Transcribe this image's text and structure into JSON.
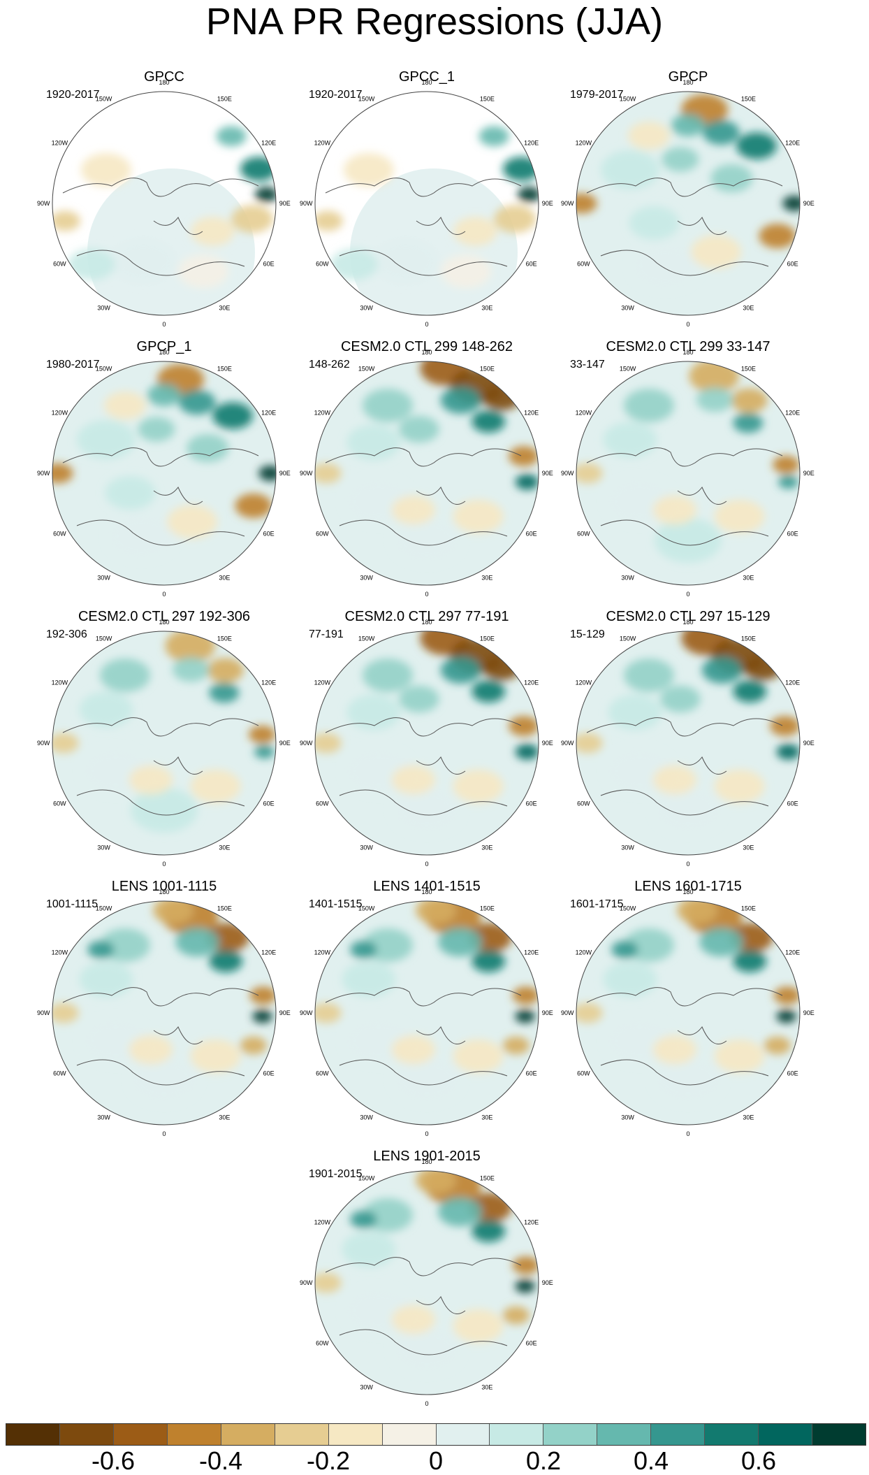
{
  "title": "PNA PR Regressions (JJA)",
  "longitude_labels": [
    "180",
    "150E",
    "120E",
    "90E",
    "60E",
    "30E",
    "0",
    "30W",
    "60W",
    "90W",
    "120W",
    "150W"
  ],
  "panels": [
    {
      "title": "GPCC",
      "period": "1920-2017",
      "pattern": "obs_gpcc"
    },
    {
      "title": "GPCC_1",
      "period": "1920-2017",
      "pattern": "obs_gpcc"
    },
    {
      "title": "GPCP",
      "period": "1979-2017",
      "pattern": "obs_gpcp"
    },
    {
      "title": "GPCP_1",
      "period": "1980-2017",
      "pattern": "obs_gpcp"
    },
    {
      "title": "CESM2.0 CTL 299 148-262",
      "period": "148-262",
      "pattern": "model_strong"
    },
    {
      "title": "CESM2.0 CTL 299 33-147",
      "period": "33-147",
      "pattern": "model_weak"
    },
    {
      "title": "CESM2.0 CTL 297 192-306",
      "period": "192-306",
      "pattern": "model_weak"
    },
    {
      "title": "CESM2.0 CTL 297 77-191",
      "period": "77-191",
      "pattern": "model_strong"
    },
    {
      "title": "CESM2.0 CTL 297 15-129",
      "period": "15-129",
      "pattern": "model_strong"
    },
    {
      "title": "LENS 1001-1115",
      "period": "1001-1115",
      "pattern": "lens"
    },
    {
      "title": "LENS 1401-1515",
      "period": "1401-1515",
      "pattern": "lens"
    },
    {
      "title": "LENS 1601-1715",
      "period": "1601-1715",
      "pattern": "lens"
    },
    {
      "title": "LENS 1901-2015",
      "period": "1901-2015",
      "pattern": "lens"
    }
  ],
  "colorbar": {
    "colors": [
      "#543005",
      "#7d4a0e",
      "#9c5c16",
      "#bf812d",
      "#d5ad61",
      "#e6cd92",
      "#f6e8c3",
      "#f5f1e6",
      "#e1f0ef",
      "#c7eae5",
      "#93d2c8",
      "#65b8ae",
      "#35978f",
      "#127a6f",
      "#01665e",
      "#003c30"
    ],
    "labels": [
      "-0.6",
      "-0.4",
      "-0.2",
      "0",
      "0.2",
      "0.4",
      "0.6"
    ]
  }
}
